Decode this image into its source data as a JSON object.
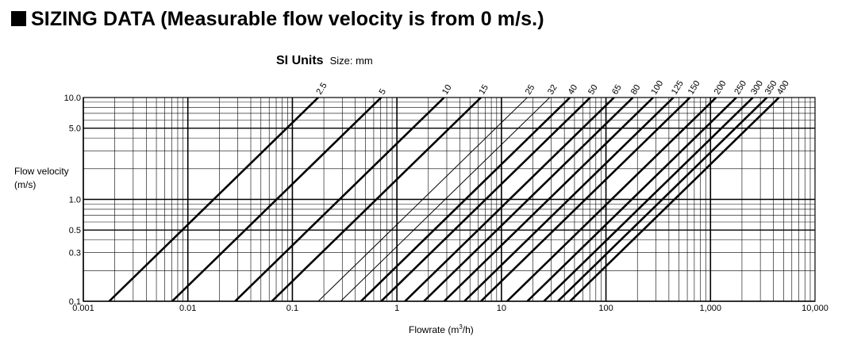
{
  "header": {
    "title": "SIZING DATA (Measurable flow velocity is from 0 m/s.)"
  },
  "chart_data": {
    "type": "line",
    "title": "SI Units",
    "subtitle": "Size: mm",
    "xlabel_pre": "Flowrate (m",
    "xlabel_sup": "3",
    "xlabel_post": "/h)",
    "ylabel_line1": "Flow velocity",
    "ylabel_line2": "(m/s)",
    "xscale": "log",
    "yscale": "log",
    "xlim": [
      0.001,
      10000
    ],
    "ylim": [
      0.1,
      10
    ],
    "x_ticks": [
      {
        "value": 0.001,
        "label": "0.001"
      },
      {
        "value": 0.01,
        "label": "0.01"
      },
      {
        "value": 0.1,
        "label": "0.1"
      },
      {
        "value": 1,
        "label": "1"
      },
      {
        "value": 10,
        "label": "10"
      },
      {
        "value": 100,
        "label": "100"
      },
      {
        "value": 1000,
        "label": "1,000"
      },
      {
        "value": 10000,
        "label": "10,000"
      }
    ],
    "y_ticks": [
      {
        "value": 0.1,
        "label": "0.1"
      },
      {
        "value": 0.3,
        "label": "0.3"
      },
      {
        "value": 0.5,
        "label": "0.5"
      },
      {
        "value": 1,
        "label": "1.0"
      },
      {
        "value": 5,
        "label": "5.0"
      },
      {
        "value": 10,
        "label": "10.0"
      }
    ],
    "grid": true,
    "series": [
      {
        "name": "2.5",
        "diameter_mm": 2.5,
        "weight": "bold"
      },
      {
        "name": "5",
        "diameter_mm": 5,
        "weight": "bold"
      },
      {
        "name": "10",
        "diameter_mm": 10,
        "weight": "bold"
      },
      {
        "name": "15",
        "diameter_mm": 15,
        "weight": "bold"
      },
      {
        "name": "25",
        "diameter_mm": 25,
        "weight": "thin"
      },
      {
        "name": "32",
        "diameter_mm": 32,
        "weight": "thin"
      },
      {
        "name": "40",
        "diameter_mm": 40,
        "weight": "bold"
      },
      {
        "name": "50",
        "diameter_mm": 50,
        "weight": "bold"
      },
      {
        "name": "65",
        "diameter_mm": 65,
        "weight": "bold"
      },
      {
        "name": "80",
        "diameter_mm": 80,
        "weight": "bold"
      },
      {
        "name": "100",
        "diameter_mm": 100,
        "weight": "bold"
      },
      {
        "name": "125",
        "diameter_mm": 125,
        "weight": "bold"
      },
      {
        "name": "150",
        "diameter_mm": 150,
        "weight": "bold"
      },
      {
        "name": "200",
        "diameter_mm": 200,
        "weight": "bold"
      },
      {
        "name": "250",
        "diameter_mm": 250,
        "weight": "bold"
      },
      {
        "name": "300",
        "diameter_mm": 300,
        "weight": "bold"
      },
      {
        "name": "350",
        "diameter_mm": 350,
        "weight": "bold"
      },
      {
        "name": "400",
        "diameter_mm": 400,
        "weight": "bold"
      }
    ]
  }
}
